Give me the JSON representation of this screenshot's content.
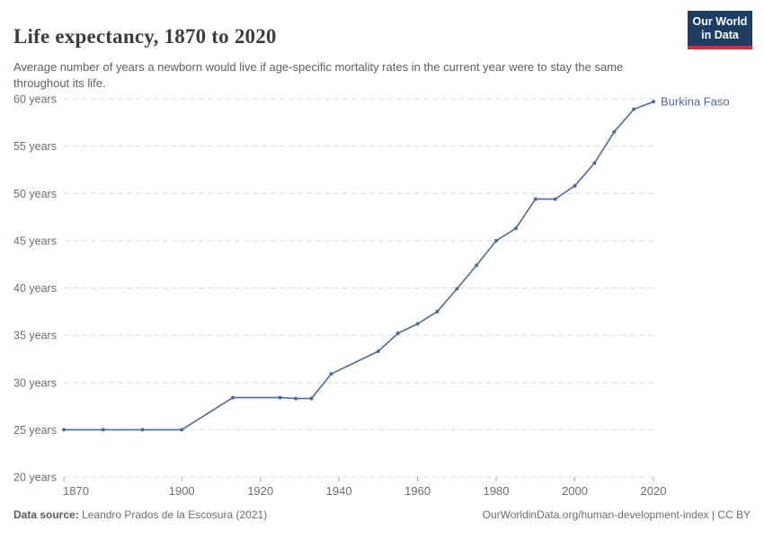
{
  "header": {
    "title": "Life expectancy, 1870 to 2020",
    "subtitle": "Average number of years a newborn would live if age-specific mortality rates in the current year were to stay the same throughout its life.",
    "logo": {
      "line1": "Our World",
      "line2": "in Data",
      "bg_color": "#1d3d63",
      "stripe_color": "#cf2e41"
    }
  },
  "footer": {
    "datasource_label": "Data source:",
    "datasource_value": "Leandro Prados de la Escosura (2021)",
    "rights": "OurWorldinData.org/human-development-index | CC BY"
  },
  "chart_data": {
    "type": "line",
    "title": "Life expectancy, 1870 to 2020",
    "xlabel": "",
    "ylabel": "",
    "xlim": [
      1870,
      2020
    ],
    "ylim": [
      20,
      60
    ],
    "x_ticks": [
      1870,
      1900,
      1920,
      1940,
      1960,
      1980,
      2000,
      2020
    ],
    "y_ticks": [
      20,
      25,
      30,
      35,
      40,
      45,
      50,
      55,
      60
    ],
    "y_tick_format": "{v} years",
    "grid": "horizontal-dashed",
    "legend_position": "end-of-line-label",
    "series": [
      {
        "name": "Burkina Faso",
        "color": "#4C6A9C",
        "x": [
          1870,
          1880,
          1890,
          1900,
          1913,
          1925,
          1929,
          1933,
          1938,
          1950,
          1955,
          1960,
          1965,
          1970,
          1975,
          1980,
          1985,
          1990,
          1995,
          2000,
          2005,
          2010,
          2015,
          2020
        ],
        "values": [
          25,
          25,
          25,
          25,
          28.4,
          28.4,
          28.3,
          28.3,
          30.9,
          33.3,
          35.2,
          36.2,
          37.5,
          39.9,
          42.4,
          45.0,
          46.3,
          49.4,
          49.4,
          50.8,
          53.2,
          56.5,
          58.9,
          59.7
        ]
      }
    ]
  }
}
